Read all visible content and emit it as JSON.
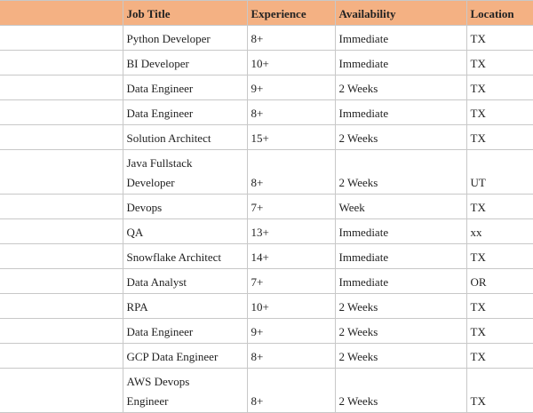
{
  "table": {
    "header": [
      "Job Title",
      "Experience",
      "Availability",
      "Location"
    ],
    "rows": [
      [
        "Python Developer",
        "8+",
        "Immediate",
        "TX"
      ],
      [
        "BI Developer",
        "10+",
        "Immediate",
        "TX"
      ],
      [
        "Data Engineer",
        "9+",
        "2 Weeks",
        "TX"
      ],
      [
        "Data Engineer",
        "8+",
        "Immediate",
        "TX"
      ],
      [
        "Solution Architect",
        "15+",
        "2 Weeks",
        "TX"
      ],
      [
        "Java Fullstack\nDeveloper",
        "8+",
        "2 Weeks",
        "UT"
      ],
      [
        "Devops",
        "7+",
        "Week",
        "TX"
      ],
      [
        "QA",
        "13+",
        "Immediate",
        "xx"
      ],
      [
        "Snowflake Architect",
        "14+",
        "Immediate",
        "TX"
      ],
      [
        "Data Analyst",
        "7+",
        "Immediate",
        "OR"
      ],
      [
        "RPA",
        "10+",
        "2 Weeks",
        "TX"
      ],
      [
        "Data Engineer",
        "9+",
        "2 Weeks",
        "TX"
      ],
      [
        "GCP Data Engineer",
        "8+",
        "2 Weeks",
        "TX"
      ],
      [
        "AWS Devops\nEngineer",
        "8+",
        "2 Weeks",
        "TX"
      ]
    ]
  }
}
